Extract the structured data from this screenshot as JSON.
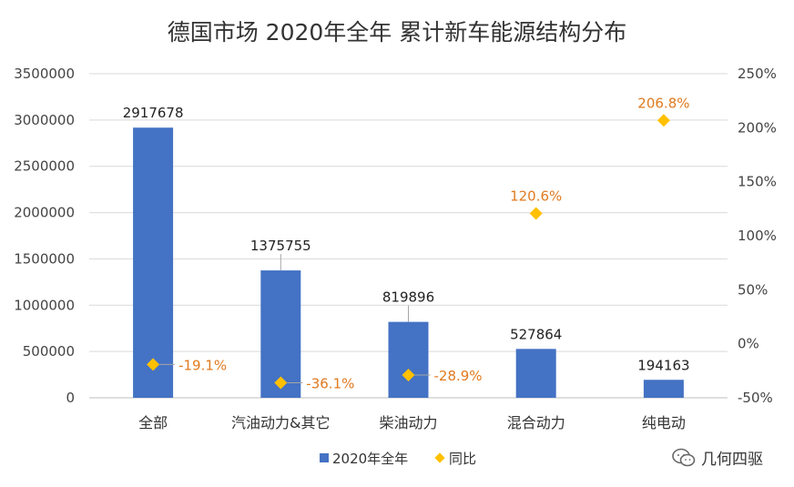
{
  "chart_data": {
    "type": "bar",
    "title": "德国市场 2020年全年 累计新车能源结构分布",
    "categories": [
      "全部",
      "汽油动力&其它",
      "柴油动力",
      "混合动力",
      "纯电动"
    ],
    "series": [
      {
        "name": "2020年全年",
        "kind": "bar",
        "axis": "left",
        "values": [
          2917678,
          1375755,
          819896,
          527864,
          194163
        ],
        "labels": [
          "2917678",
          "1375755",
          "819896",
          "527864",
          "194163"
        ]
      },
      {
        "name": "同比",
        "kind": "scatter",
        "axis": "right",
        "values": [
          -19.1,
          -36.1,
          -28.9,
          120.6,
          206.8
        ],
        "labels": [
          "-19.1%",
          "-36.1%",
          "-28.9%",
          "120.6%",
          "206.8%"
        ]
      }
    ],
    "y_left": {
      "min": 0,
      "max": 3500000,
      "ticks": [
        "0",
        "500000",
        "1000000",
        "1500000",
        "2000000",
        "2500000",
        "3000000",
        "3500000"
      ]
    },
    "y_right": {
      "min": -50,
      "max": 250,
      "ticks": [
        "-50%",
        "0%",
        "50%",
        "100%",
        "150%",
        "200%",
        "250%"
      ]
    },
    "grid": true,
    "legend_position": "bottom",
    "colors": {
      "bar": "#4472c4",
      "marker": "#ffc000",
      "point_label": "#e07a1f"
    }
  },
  "watermark": {
    "text": "几何四驱",
    "icon": "wechat-icon"
  }
}
